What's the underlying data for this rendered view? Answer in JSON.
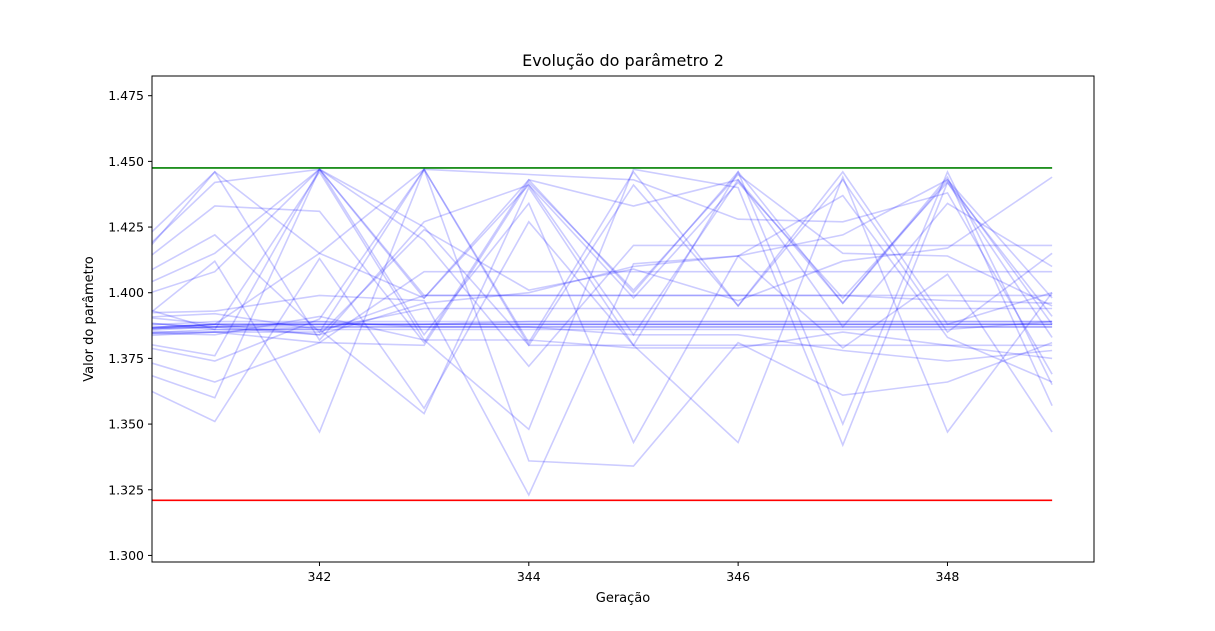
{
  "chart_data": {
    "type": "line",
    "title": "Evolução do parâmetro 2",
    "xlabel": "Geração",
    "ylabel": "Valor do parâmetro",
    "xlim": [
      340.4,
      349.4
    ],
    "ylim": [
      1.2975,
      1.4825
    ],
    "x_ticks": [
      342,
      344,
      346,
      348
    ],
    "x_tick_labels": [
      "342",
      "344",
      "346",
      "348"
    ],
    "y_ticks": [
      1.3,
      1.325,
      1.35,
      1.375,
      1.4,
      1.425,
      1.45,
      1.475
    ],
    "y_tick_labels": [
      "1.300",
      "1.325",
      "1.350",
      "1.375",
      "1.400",
      "1.425",
      "1.450",
      "1.475"
    ],
    "grid": false,
    "reference_lines": [
      {
        "y": 1.4475,
        "color": "#008000"
      },
      {
        "y": 1.321,
        "color": "#ff0000"
      }
    ],
    "series_color": "#0000ff",
    "series_opacity": 0.2,
    "x": [
      340,
      341,
      342,
      343,
      344,
      345,
      346,
      347,
      348,
      349
    ],
    "series": [
      {
        "values": [
          1.386,
          1.388,
          1.388,
          1.388,
          1.388,
          1.388,
          1.388,
          1.388,
          1.388,
          1.388
        ]
      },
      {
        "values": [
          1.386,
          1.388,
          1.388,
          1.388,
          1.388,
          1.388,
          1.388,
          1.388,
          1.388,
          1.388
        ]
      },
      {
        "values": [
          1.385,
          1.388,
          1.388,
          1.388,
          1.388,
          1.388,
          1.388,
          1.388,
          1.388,
          1.388
        ]
      },
      {
        "values": [
          1.385,
          1.387,
          1.388,
          1.388,
          1.389,
          1.389,
          1.389,
          1.389,
          1.389,
          1.389
        ]
      },
      {
        "values": [
          1.386,
          1.387,
          1.387,
          1.387,
          1.387,
          1.387,
          1.387,
          1.387,
          1.387,
          1.387
        ]
      },
      {
        "values": [
          1.384,
          1.386,
          1.386,
          1.386,
          1.386,
          1.386,
          1.386,
          1.386,
          1.386,
          1.389
        ]
      },
      {
        "values": [
          1.387,
          1.389,
          1.389,
          1.389,
          1.389,
          1.389,
          1.389,
          1.389,
          1.389,
          1.389
        ]
      },
      {
        "values": [
          1.383,
          1.385,
          1.387,
          1.387,
          1.387,
          1.387,
          1.387,
          1.387,
          1.387,
          1.387
        ]
      },
      {
        "values": [
          1.4,
          1.446,
          1.415,
          1.398,
          1.443,
          1.4,
          1.446,
          1.396,
          1.443,
          1.388
        ]
      },
      {
        "values": [
          1.397,
          1.415,
          1.447,
          1.398,
          1.441,
          1.398,
          1.442,
          1.398,
          1.442,
          1.383
        ]
      },
      {
        "values": [
          1.4,
          1.422,
          1.385,
          1.447,
          1.381,
          1.446,
          1.395,
          1.446,
          1.388,
          1.4
        ]
      },
      {
        "values": [
          1.395,
          1.408,
          1.447,
          1.425,
          1.38,
          1.441,
          1.395,
          1.443,
          1.385,
          1.415
        ]
      },
      {
        "values": [
          1.404,
          1.442,
          1.447,
          1.399,
          1.399,
          1.399,
          1.399,
          1.399,
          1.397,
          1.396
        ]
      },
      {
        "values": [
          1.408,
          1.446,
          1.382,
          1.427,
          1.441,
          1.384,
          1.443,
          1.396,
          1.444,
          1.357
        ]
      },
      {
        "values": [
          1.402,
          1.433,
          1.431,
          1.381,
          1.443,
          1.433,
          1.443,
          1.387,
          1.434,
          1.41
        ]
      },
      {
        "values": [
          1.383,
          1.376,
          1.447,
          1.42,
          1.372,
          1.418,
          1.418,
          1.418,
          1.418,
          1.418
        ]
      },
      {
        "values": [
          1.382,
          1.374,
          1.39,
          1.447,
          1.445,
          1.443,
          1.428,
          1.427,
          1.438,
          1.369
        ]
      },
      {
        "values": [
          1.378,
          1.366,
          1.381,
          1.408,
          1.408,
          1.408,
          1.408,
          1.408,
          1.408,
          1.408
        ]
      },
      {
        "values": [
          1.374,
          1.36,
          1.447,
          1.384,
          1.434,
          1.343,
          1.414,
          1.437,
          1.383,
          1.366
        ]
      },
      {
        "values": [
          1.37,
          1.351,
          1.413,
          1.356,
          1.427,
          1.38,
          1.343,
          1.444,
          1.347,
          1.4
        ]
      },
      {
        "values": [
          1.38,
          1.412,
          1.347,
          1.447,
          1.336,
          1.334,
          1.381,
          1.361,
          1.366,
          1.381
        ]
      },
      {
        "values": [
          1.392,
          1.393,
          1.399,
          1.397,
          1.323,
          1.411,
          1.414,
          1.379,
          1.407,
          1.347
        ]
      },
      {
        "values": [
          1.398,
          1.386,
          1.446,
          1.382,
          1.348,
          1.447,
          1.44,
          1.342,
          1.442,
          1.391
        ]
      },
      {
        "values": [
          1.39,
          1.392,
          1.386,
          1.354,
          1.44,
          1.38,
          1.446,
          1.35,
          1.446,
          1.365
        ]
      },
      {
        "values": [
          1.386,
          1.388,
          1.415,
          1.447,
          1.38,
          1.38,
          1.38,
          1.38,
          1.38,
          1.38
        ]
      },
      {
        "values": [
          1.384,
          1.385,
          1.381,
          1.38,
          1.442,
          1.401,
          1.445,
          1.415,
          1.414,
          1.395
        ]
      },
      {
        "values": [
          1.392,
          1.388,
          1.384,
          1.396,
          1.4,
          1.41,
          1.414,
          1.422,
          1.443,
          1.398
        ]
      },
      {
        "values": [
          1.385,
          1.385,
          1.385,
          1.399,
          1.399,
          1.399,
          1.399,
          1.399,
          1.399,
          1.399
        ]
      },
      {
        "values": [
          1.39,
          1.386,
          1.386,
          1.394,
          1.394,
          1.394,
          1.394,
          1.394,
          1.394,
          1.394
        ]
      },
      {
        "values": [
          1.386,
          1.387,
          1.389,
          1.387,
          1.387,
          1.384,
          1.384,
          1.378,
          1.374,
          1.378
        ]
      },
      {
        "values": [
          1.385,
          1.384,
          1.391,
          1.382,
          1.382,
          1.379,
          1.379,
          1.385,
          1.38,
          1.375
        ]
      },
      {
        "values": [
          1.389,
          1.387,
          1.384,
          1.424,
          1.401,
          1.409,
          1.397,
          1.412,
          1.417,
          1.444
        ]
      }
    ]
  }
}
